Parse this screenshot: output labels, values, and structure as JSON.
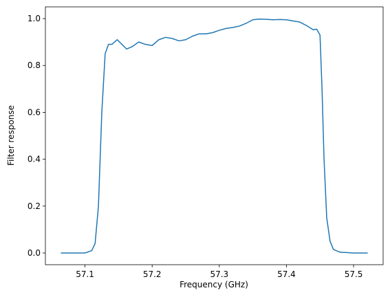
{
  "chart_data": {
    "type": "line",
    "xlabel": "Frequency (GHz)",
    "ylabel": "Filter response",
    "x": [
      57.064,
      57.1,
      57.11,
      57.115,
      57.12,
      57.125,
      57.13,
      57.135,
      57.14,
      57.148,
      57.155,
      57.162,
      57.17,
      57.18,
      57.19,
      57.2,
      57.21,
      57.22,
      57.23,
      57.24,
      57.25,
      57.26,
      57.27,
      57.28,
      57.29,
      57.3,
      57.31,
      57.32,
      57.33,
      57.34,
      57.35,
      57.36,
      57.37,
      57.38,
      57.39,
      57.4,
      57.41,
      57.42,
      57.43,
      57.44,
      57.445,
      57.45,
      57.453,
      57.456,
      57.46,
      57.465,
      57.47,
      57.48,
      57.5,
      57.521
    ],
    "series": [
      {
        "color": "#1f77b4",
        "values": [
          0,
          0,
          0.01,
          0.04,
          0.2,
          0.6,
          0.85,
          0.89,
          0.89,
          0.91,
          0.89,
          0.87,
          0.88,
          0.9,
          0.89,
          0.885,
          0.91,
          0.92,
          0.915,
          0.905,
          0.91,
          0.925,
          0.935,
          0.935,
          0.94,
          0.95,
          0.958,
          0.962,
          0.968,
          0.98,
          0.995,
          0.998,
          0.997,
          0.995,
          0.996,
          0.995,
          0.99,
          0.985,
          0.97,
          0.952,
          0.955,
          0.93,
          0.7,
          0.4,
          0.15,
          0.05,
          0.015,
          0.003,
          0,
          0
        ]
      }
    ],
    "xlim": [
      57.041,
      57.544
    ],
    "xticks": [
      57.1,
      57.2,
      57.3,
      57.4,
      57.5
    ],
    "ylim": [
      -0.05,
      1.05
    ],
    "yticks": [
      {
        "value": 0,
        "label": "0.0"
      },
      0.2,
      0.4,
      0.6,
      0.8,
      {
        "value": 1,
        "label": "1.0"
      }
    ]
  }
}
